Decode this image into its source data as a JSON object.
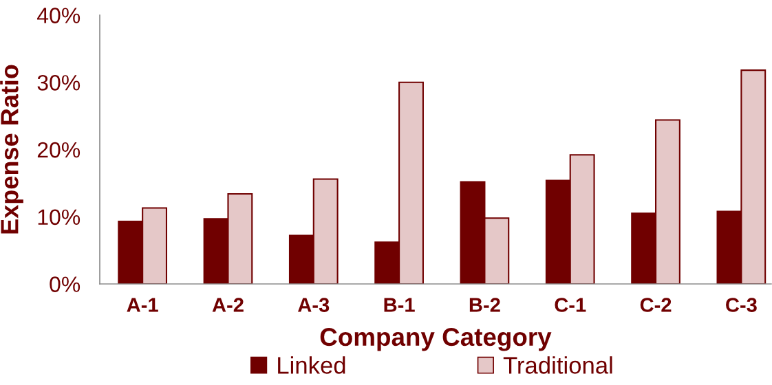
{
  "chart_data": {
    "type": "bar",
    "xlabel": "Company Category",
    "ylabel": "Expense Ratio",
    "categories": [
      "A-1",
      "A-2",
      "A-3",
      "B-1",
      "B-2",
      "C-1",
      "C-2",
      "C-3"
    ],
    "series": [
      {
        "name": "Linked",
        "color": "#700000",
        "values": [
          9.3,
          9.7,
          7.2,
          6.2,
          15.2,
          15.4,
          10.5,
          10.8
        ]
      },
      {
        "name": "Traditional",
        "color": "#e5c8c8",
        "values": [
          11.3,
          13.4,
          15.6,
          30.0,
          9.8,
          19.2,
          24.4,
          31.8
        ]
      }
    ],
    "ylim": [
      0,
      40
    ],
    "yticks": [
      {
        "value": 0,
        "label": "0%"
      },
      {
        "value": 10,
        "label": "10%"
      },
      {
        "value": 20,
        "label": "20%"
      },
      {
        "value": 30,
        "label": "30%"
      },
      {
        "value": 40,
        "label": "40%"
      }
    ],
    "grid": false,
    "legend": "bottom"
  }
}
